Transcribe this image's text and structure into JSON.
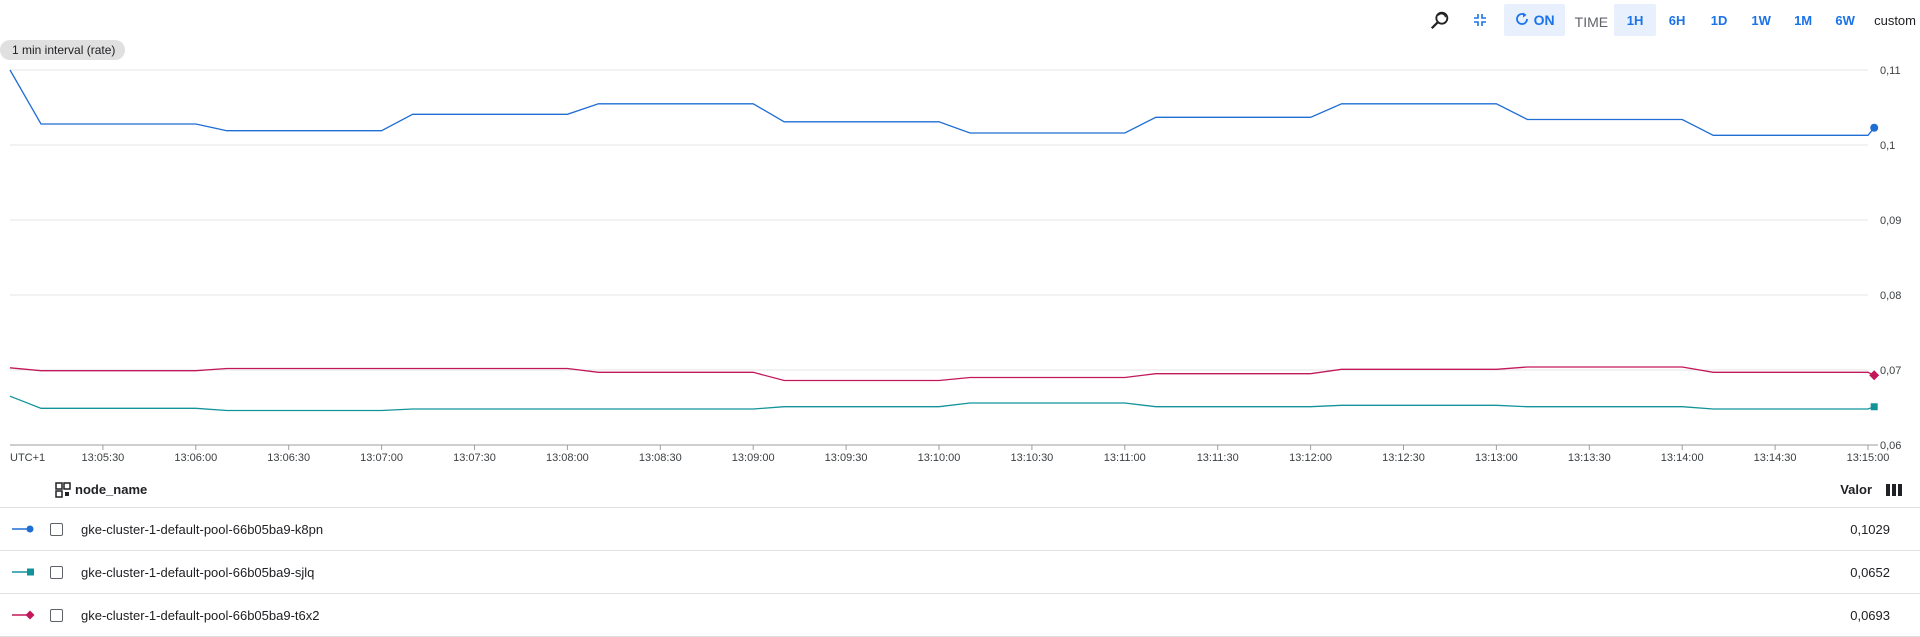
{
  "toolbar": {
    "auto_refresh_label": "ON",
    "time_label": "TIME",
    "ranges": [
      "1H",
      "6H",
      "1D",
      "1W",
      "1M",
      "6W"
    ],
    "active_range": "1H",
    "custom_label": "custom"
  },
  "interval_chip": "1 min interval (rate)",
  "table": {
    "header_name": "node_name",
    "header_value": "Valor",
    "rows": [
      {
        "name": "gke-cluster-1-default-pool-66b05ba9-k8pn",
        "value": "0,1029"
      },
      {
        "name": "gke-cluster-1-default-pool-66b05ba9-sjlq",
        "value": "0,0652"
      },
      {
        "name": "gke-cluster-1-default-pool-66b05ba9-t6x2",
        "value": "0,0693"
      }
    ]
  },
  "chart_data": {
    "type": "line",
    "timezone_label": "UTC+1",
    "x_tick_labels": [
      "13:05:30",
      "13:06:00",
      "13:06:30",
      "13:07:00",
      "13:07:30",
      "13:08:00",
      "13:08:30",
      "13:09:00",
      "13:09:30",
      "13:10:00",
      "13:10:30",
      "13:11:00",
      "13:11:30",
      "13:12:00",
      "13:12:30",
      "13:13:00",
      "13:13:30",
      "13:14:00",
      "13:14:30",
      "13:15:00"
    ],
    "y_tick_labels": [
      "0,11",
      "0,1",
      "0,09",
      "0,08",
      "0,07",
      "0,06"
    ],
    "ylim": [
      0.06,
      0.11
    ],
    "x_range_seconds": [
      0,
      600
    ],
    "grid": true,
    "series": [
      {
        "color": "#1f6ed4",
        "marker": "circle",
        "x": [
          "13:05:00",
          "13:05:10",
          "13:06:00",
          "13:06:10",
          "13:07:00",
          "13:07:10",
          "13:08:00",
          "13:08:10",
          "13:09:00",
          "13:09:10",
          "13:10:00",
          "13:10:10",
          "13:11:00",
          "13:11:10",
          "13:12:00",
          "13:12:10",
          "13:13:00",
          "13:13:10",
          "13:14:00",
          "13:14:10",
          "13:15:00",
          "13:15:02"
        ],
        "values": [
          0.11,
          0.1028,
          0.1028,
          0.1019,
          0.1019,
          0.1041,
          0.1041,
          0.1055,
          0.1055,
          0.1031,
          0.1031,
          0.1016,
          0.1016,
          0.1037,
          0.1037,
          0.1055,
          0.1055,
          0.1034,
          0.1034,
          0.1013,
          0.1013,
          0.1023
        ]
      },
      {
        "color": "#12939a",
        "marker": "square",
        "x": [
          "13:05:00",
          "13:05:10",
          "13:06:00",
          "13:06:10",
          "13:07:00",
          "13:07:10",
          "13:08:00",
          "13:08:10",
          "13:09:00",
          "13:09:10",
          "13:10:00",
          "13:10:10",
          "13:11:00",
          "13:11:10",
          "13:12:00",
          "13:12:10",
          "13:13:00",
          "13:13:10",
          "13:14:00",
          "13:14:10",
          "13:15:00",
          "13:15:02"
        ],
        "values": [
          0.0665,
          0.0649,
          0.0649,
          0.0646,
          0.0646,
          0.0648,
          0.0648,
          0.0648,
          0.0648,
          0.0651,
          0.0651,
          0.0656,
          0.0656,
          0.0651,
          0.0651,
          0.0653,
          0.0653,
          0.0651,
          0.0651,
          0.0648,
          0.0648,
          0.0651
        ]
      },
      {
        "color": "#c2185b",
        "marker": "diamond",
        "x": [
          "13:05:00",
          "13:05:10",
          "13:06:00",
          "13:06:10",
          "13:07:00",
          "13:07:10",
          "13:08:00",
          "13:08:10",
          "13:09:00",
          "13:09:10",
          "13:10:00",
          "13:10:10",
          "13:11:00",
          "13:11:10",
          "13:12:00",
          "13:12:10",
          "13:13:00",
          "13:13:10",
          "13:14:00",
          "13:14:10",
          "13:15:00",
          "13:15:02"
        ],
        "values": [
          0.0703,
          0.0699,
          0.0699,
          0.0702,
          0.0702,
          0.0702,
          0.0702,
          0.0697,
          0.0697,
          0.0686,
          0.0686,
          0.069,
          0.069,
          0.0695,
          0.0695,
          0.0701,
          0.0701,
          0.0704,
          0.0704,
          0.0697,
          0.0697,
          0.0693
        ]
      }
    ]
  }
}
